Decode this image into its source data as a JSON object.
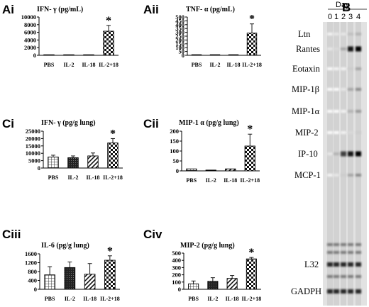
{
  "chart_data": [
    {
      "id": "Ai",
      "type": "bar",
      "panel_label": "Ai",
      "title": "IFN- γ  (pg/mL)",
      "categories": [
        "PBS",
        "IL-2",
        "IL-18",
        "IL-2+18"
      ],
      "values": [
        0,
        0,
        0,
        6300
      ],
      "errors": [
        0,
        0,
        0,
        1500
      ],
      "ylim": [
        0,
        10000
      ],
      "yticks": [
        "0",
        "2000",
        "4000",
        "6000",
        "8000",
        "10000"
      ],
      "patterns": [
        "check",
        "check",
        "check",
        "check"
      ],
      "significance": "*",
      "significant_index": 3
    },
    {
      "id": "Aii",
      "type": "bar",
      "panel_label": "Aii",
      "title": "TNF- α  (pg/mL)",
      "categories": [
        "PBS",
        "IL-2",
        "IL-18",
        "IL-2+18"
      ],
      "values": [
        8,
        8,
        8,
        290
      ],
      "errors": [
        0,
        0,
        0,
        120
      ],
      "ylim": [
        0,
        500
      ],
      "yticks": [
        "0",
        "50",
        "100",
        "150",
        "200",
        "250",
        "300",
        "350",
        "400",
        "450",
        "500"
      ],
      "patterns": [
        "check",
        "check",
        "check",
        "check"
      ],
      "significance": "*",
      "significant_index": 3
    },
    {
      "id": "Ci",
      "type": "bar",
      "panel_label": "Ci",
      "title": "IFN- γ  (pg/g lung)",
      "categories": [
        "PBS",
        "IL-2",
        "IL-18",
        "IL-2+18"
      ],
      "values": [
        7500,
        7000,
        8200,
        17000
      ],
      "errors": [
        1200,
        1200,
        2000,
        3000
      ],
      "ylim": [
        0,
        25000
      ],
      "yticks": [
        "0",
        "5000",
        "10000",
        "15000",
        "20000",
        "25000"
      ],
      "patterns": [
        "grid",
        "dark",
        "diag",
        "check"
      ],
      "significance": "*",
      "significant_index": 3
    },
    {
      "id": "Cii",
      "type": "bar",
      "panel_label": "Cii",
      "title": "MIP-1 α  (pg/g lung)",
      "categories": [
        "PBS",
        "IL-2",
        "IL-18",
        "IL-2+18"
      ],
      "values": [
        10,
        4,
        10,
        125
      ],
      "errors": [
        0,
        0,
        0,
        60
      ],
      "ylim": [
        0,
        200
      ],
      "yticks": [
        "0",
        "50",
        "100",
        "150",
        "200"
      ],
      "patterns": [
        "grid",
        "dark",
        "diag",
        "check"
      ],
      "significance": "*",
      "significant_index": 3
    },
    {
      "id": "Ciii",
      "type": "bar",
      "panel_label": "Ciii",
      "title": "IL-6 (pg/g lung)",
      "categories": [
        "PBS",
        "IL-2",
        "IL-18",
        "IL-2+18"
      ],
      "values": [
        650,
        980,
        680,
        1310
      ],
      "errors": [
        370,
        250,
        480,
        200
      ],
      "ylim": [
        0,
        1600
      ],
      "yticks": [
        "0",
        "400",
        "800",
        "1200",
        "1600"
      ],
      "patterns": [
        "grid",
        "dark",
        "diag",
        "check"
      ],
      "significance": "*",
      "significant_index": 3
    },
    {
      "id": "Civ",
      "type": "bar",
      "panel_label": "Civ",
      "title": "MIP-2 (pg/g lung)",
      "categories": [
        "PBS",
        "IL-2",
        "IL-18",
        "IL-2+18"
      ],
      "values": [
        75,
        110,
        150,
        420
      ],
      "errors": [
        40,
        50,
        40,
        20
      ],
      "ylim": [
        0,
        500
      ],
      "yticks": [
        "0",
        "100",
        "200",
        "300",
        "400",
        "500"
      ],
      "patterns": [
        "grid",
        "dark",
        "diag",
        "check"
      ],
      "significance": "*",
      "significant_index": 3
    }
  ],
  "blot": {
    "panel_label": "B",
    "header": "Day",
    "days": [
      "0",
      "1",
      "2",
      "3",
      "4"
    ],
    "genes": [
      "Ltn",
      "Rantes",
      "Eotaxin",
      "MIP-1β",
      "MIP-1α",
      "MIP-2",
      "IP-10",
      "MCP-1",
      "L32",
      "GADPH"
    ],
    "band_intensity": {
      "Ltn": [
        0.05,
        0.1,
        0.1,
        0.25,
        0.3
      ],
      "Rantes": [
        0.1,
        0.15,
        0.35,
        0.9,
        1.0
      ],
      "Eotaxin": [
        0.02,
        0.05,
        0.05,
        0.2,
        0.35
      ],
      "MIP-1β": [
        0.02,
        0.02,
        0.1,
        0.35,
        0.45
      ],
      "MIP-1α": [
        0.02,
        0.02,
        0.05,
        0.3,
        0.4
      ],
      "MIP-2": [
        0.02,
        0.02,
        0.05,
        0.15,
        0.2
      ],
      "IP-10": [
        0.1,
        0.3,
        0.75,
        0.9,
        1.0
      ],
      "MCP-1": [
        0.05,
        0.1,
        0.2,
        0.35,
        0.45
      ],
      "L32": [
        0.85,
        0.85,
        0.85,
        0.85,
        0.85
      ],
      "GADPH": [
        0.85,
        0.85,
        0.85,
        0.85,
        0.85
      ]
    }
  }
}
